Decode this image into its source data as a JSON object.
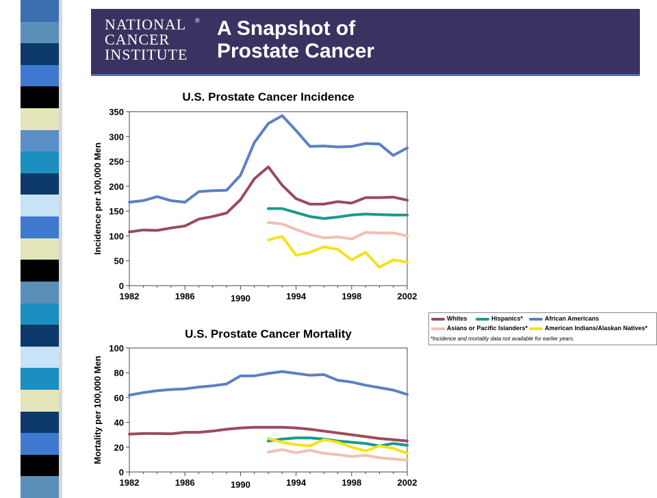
{
  "banner": {
    "logo_lines": [
      "NATIONAL",
      "CANCER",
      "INSTITUTE"
    ],
    "logo_mark": "®",
    "title_line1": "A Snapshot of",
    "title_line2": "Prostate Cancer"
  },
  "stripe_colors": [
    "#3a6fb0",
    "#5a8fb8",
    "#0d3a6a",
    "#3f7ad0",
    "#000000",
    "#e3e6b9",
    "#5b8fc8",
    "#1c8fc0",
    "#0d3a6a",
    "#c8e2f8",
    "#3f7ad0",
    "#e3e6b9",
    "#000000",
    "#5a8fb8",
    "#1c8fc0",
    "#0d3a6a",
    "#c8e2f8",
    "#1c8fc0",
    "#e3e6b9",
    "#0d3a6a",
    "#3f7ad0",
    "#000000",
    "#5a8fb8"
  ],
  "legend": {
    "entries": [
      {
        "label": "Whites",
        "color": "#9b4b5a"
      },
      {
        "label": "Hispanics*",
        "color": "#1a9a8c"
      },
      {
        "label": "African Americans",
        "color": "#5b80c4"
      },
      {
        "label": "Asians or Pacific Islanders*",
        "color": "#f0c0b0"
      },
      {
        "label": "American Indians/Alaskan Natives*",
        "color": "#f5e21a"
      }
    ],
    "note": "*Incidence and mortality data not available for earlier years."
  },
  "chart_data": [
    {
      "type": "line",
      "title": "U.S. Prostate Cancer Incidence",
      "xlabel": "",
      "ylabel": "Incidence per 100,000 Men",
      "xlim": [
        1982,
        2002
      ],
      "ylim": [
        0,
        350
      ],
      "xticks": [
        "1982",
        "1986",
        "1990",
        "1994",
        "1998",
        "2002"
      ],
      "yticks": [
        "0",
        "50",
        "100",
        "150",
        "200",
        "250",
        "300",
        "350"
      ],
      "grid": false,
      "series": [
        {
          "name": "African Americans",
          "color": "#5b80c4",
          "x": [
            1982,
            1983,
            1984,
            1985,
            1986,
            1987,
            1988,
            1989,
            1990,
            1991,
            1992,
            1993,
            1994,
            1995,
            1996,
            1997,
            1998,
            1999,
            2000,
            2001,
            2002
          ],
          "values": [
            168,
            171,
            179,
            171,
            168,
            189,
            191,
            192,
            222,
            288,
            326,
            342,
            312,
            280,
            281,
            279,
            280,
            286,
            285,
            262,
            277
          ]
        },
        {
          "name": "Whites",
          "color": "#9b4b5a",
          "x": [
            1982,
            1983,
            1984,
            1985,
            1986,
            1987,
            1988,
            1989,
            1990,
            1991,
            1992,
            1993,
            1994,
            1995,
            1996,
            1997,
            1998,
            1999,
            2000,
            2001,
            2002
          ],
          "values": [
            108,
            112,
            111,
            116,
            120,
            134,
            139,
            146,
            173,
            215,
            239,
            202,
            175,
            164,
            164,
            169,
            166,
            177,
            177,
            178,
            172
          ]
        },
        {
          "name": "Hispanics*",
          "color": "#1a9a8c",
          "x": [
            1992,
            1993,
            1994,
            1995,
            1996,
            1997,
            1998,
            1999,
            2000,
            2001,
            2002
          ],
          "values": [
            155,
            155,
            147,
            139,
            135,
            138,
            142,
            144,
            143,
            142,
            142
          ]
        },
        {
          "name": "Asians or Pacific Islanders*",
          "color": "#f0c0b0",
          "x": [
            1992,
            1993,
            1994,
            1995,
            1996,
            1997,
            1998,
            1999,
            2000,
            2001,
            2002
          ],
          "values": [
            127,
            124,
            113,
            103,
            96,
            98,
            94,
            107,
            106,
            106,
            100
          ]
        },
        {
          "name": "American Indians/Alaskan Natives*",
          "color": "#f5e21a",
          "x": [
            1992,
            1993,
            1994,
            1995,
            1996,
            1997,
            1998,
            1999,
            2000,
            2001,
            2002
          ],
          "values": [
            92,
            99,
            61,
            67,
            78,
            73,
            52,
            67,
            37,
            52,
            47
          ]
        }
      ]
    },
    {
      "type": "line",
      "title": "U.S. Prostate Cancer Mortality",
      "xlabel": "",
      "ylabel": "Mortality per 100,000 Men",
      "xlim": [
        1982,
        2002
      ],
      "ylim": [
        0,
        100
      ],
      "xticks": [
        "1982",
        "1986",
        "1990",
        "1994",
        "1998",
        "2002"
      ],
      "yticks": [
        "0",
        "20",
        "40",
        "60",
        "80",
        "100"
      ],
      "grid": false,
      "series": [
        {
          "name": "African Americans",
          "color": "#5b80c4",
          "x": [
            1982,
            1983,
            1984,
            1985,
            1986,
            1987,
            1988,
            1989,
            1990,
            1991,
            1992,
            1993,
            1994,
            1995,
            1996,
            1997,
            1998,
            1999,
            2000,
            2001,
            2002
          ],
          "values": [
            62,
            64,
            65.5,
            66.5,
            67,
            68.5,
            69.5,
            71,
            77.5,
            77.5,
            79.5,
            81,
            79.5,
            78,
            78.5,
            74,
            72.5,
            70,
            68,
            66,
            62.5
          ]
        },
        {
          "name": "Whites",
          "color": "#9b4b5a",
          "x": [
            1982,
            1983,
            1984,
            1985,
            1986,
            1987,
            1988,
            1989,
            1990,
            1991,
            1992,
            1993,
            1994,
            1995,
            1996,
            1997,
            1998,
            1999,
            2000,
            2001,
            2002
          ],
          "values": [
            30.5,
            31,
            31,
            30.8,
            32,
            32,
            33,
            34.5,
            35.5,
            36,
            36,
            36,
            35.5,
            34.5,
            33,
            31.5,
            30,
            28.5,
            27,
            26,
            25
          ]
        },
        {
          "name": "Hispanics*",
          "color": "#1a9a8c",
          "x": [
            1992,
            1993,
            1994,
            1995,
            1996,
            1997,
            1998,
            1999,
            2000,
            2001,
            2002
          ],
          "values": [
            25,
            26.5,
            27.5,
            27.5,
            26.5,
            25,
            24,
            23,
            21,
            23,
            21.5
          ]
        },
        {
          "name": "Asians or Pacific Islanders*",
          "color": "#f0c0b0",
          "x": [
            1992,
            1993,
            1994,
            1995,
            1996,
            1997,
            1998,
            1999,
            2000,
            2001,
            2002
          ],
          "values": [
            16,
            18,
            15.5,
            17.5,
            15,
            14,
            12.5,
            13.5,
            11.5,
            10.5,
            9.5
          ]
        },
        {
          "name": "American Indians/Alaskan Natives*",
          "color": "#f5e21a",
          "x": [
            1992,
            1993,
            1994,
            1995,
            1996,
            1997,
            1998,
            1999,
            2000,
            2001,
            2002
          ],
          "values": [
            27,
            24,
            22,
            21,
            26,
            24,
            20,
            17,
            21,
            19,
            15
          ]
        }
      ]
    }
  ]
}
